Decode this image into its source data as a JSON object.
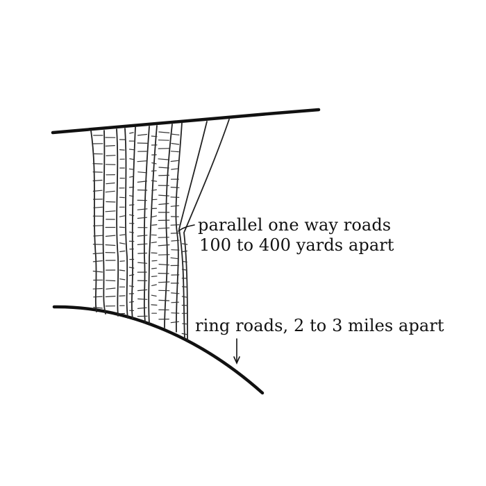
{
  "annotations": {
    "parallel_roads": {
      "line1": "parallel one way roads",
      "line2": "100 to 400 yards apart"
    },
    "ring_roads": "ring roads, 2 to 3 miles apart"
  },
  "colors": {
    "ink": "#111111",
    "background": "#ffffff"
  }
}
